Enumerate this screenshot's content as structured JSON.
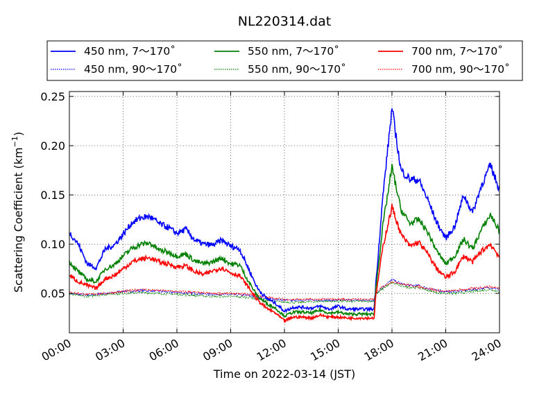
{
  "chart_data": {
    "type": "line",
    "title": "NL220314.dat",
    "xlabel": "Time on 2022-03-14 (JST)",
    "ylabel": "Scattering Coefficient (km",
    "ylabel_sup": "−1",
    "ylabel_tail": ")",
    "xlim": [
      0,
      24
    ],
    "ylim": [
      0.01,
      0.255
    ],
    "x_unit": "hours after 2022-03-14 00:00 JST",
    "x_ticks": [
      0,
      3,
      6,
      9,
      12,
      15,
      18,
      21,
      24
    ],
    "x_tick_labels": [
      "00:00",
      "03:00",
      "06:00",
      "09:00",
      "12:00",
      "15:00",
      "18:00",
      "21:00",
      "24:00"
    ],
    "y_ticks": [
      0.05,
      0.1,
      0.15,
      0.2,
      0.25
    ],
    "y_tick_labels": [
      "0.05",
      "0.10",
      "0.15",
      "0.20",
      "0.25"
    ],
    "grid": true,
    "legend_position": "top, above plot",
    "series": [
      {
        "name": "450 nm, 7～170˚",
        "color": "#0000ff",
        "style": "solid",
        "x": [
          0,
          0.5,
          1,
          1.5,
          2,
          2.5,
          3,
          3.5,
          4,
          4.5,
          5,
          5.5,
          6,
          6.5,
          7,
          7.5,
          8,
          8.5,
          9,
          9.5,
          10,
          10.5,
          11,
          11.5,
          12,
          12.5,
          13,
          13.5,
          14,
          14.5,
          15,
          15.5,
          16,
          16.5,
          17,
          17.1,
          17.5,
          18,
          18.5,
          19,
          19.5,
          20,
          20.5,
          21,
          21.5,
          22,
          22.5,
          23,
          23.5,
          24
        ],
        "y": [
          0.112,
          0.1,
          0.08,
          0.076,
          0.095,
          0.099,
          0.11,
          0.122,
          0.127,
          0.128,
          0.121,
          0.117,
          0.111,
          0.115,
          0.104,
          0.1,
          0.099,
          0.104,
          0.098,
          0.095,
          0.075,
          0.055,
          0.045,
          0.04,
          0.032,
          0.036,
          0.036,
          0.035,
          0.037,
          0.034,
          0.037,
          0.034,
          0.034,
          0.034,
          0.034,
          0.06,
          0.15,
          0.238,
          0.175,
          0.166,
          0.165,
          0.145,
          0.122,
          0.106,
          0.118,
          0.15,
          0.132,
          0.16,
          0.18,
          0.155
        ]
      },
      {
        "name": "550 nm, 7～170˚",
        "color": "#008000",
        "style": "solid",
        "x": [
          0,
          0.5,
          1,
          1.5,
          2,
          2.5,
          3,
          3.5,
          4,
          4.5,
          5,
          5.5,
          6,
          6.5,
          7,
          7.5,
          8,
          8.5,
          9,
          9.5,
          10,
          10.5,
          11,
          11.5,
          12,
          12.5,
          13,
          13.5,
          14,
          14.5,
          15,
          15.5,
          16,
          16.5,
          17,
          17.1,
          17.5,
          18,
          18.5,
          19,
          19.5,
          20,
          20.5,
          21,
          21.5,
          22,
          22.5,
          23,
          23.5,
          24
        ],
        "y": [
          0.082,
          0.072,
          0.064,
          0.062,
          0.075,
          0.079,
          0.088,
          0.096,
          0.1,
          0.101,
          0.094,
          0.092,
          0.088,
          0.09,
          0.083,
          0.08,
          0.082,
          0.086,
          0.08,
          0.079,
          0.062,
          0.047,
          0.04,
          0.035,
          0.027,
          0.031,
          0.031,
          0.03,
          0.033,
          0.03,
          0.031,
          0.029,
          0.029,
          0.029,
          0.029,
          0.055,
          0.12,
          0.178,
          0.135,
          0.121,
          0.125,
          0.112,
          0.093,
          0.08,
          0.088,
          0.105,
          0.095,
          0.115,
          0.13,
          0.113
        ]
      },
      {
        "name": "700 nm, 7～170˚",
        "color": "#ff0000",
        "style": "solid",
        "x": [
          0,
          0.5,
          1,
          1.5,
          2,
          2.5,
          3,
          3.5,
          4,
          4.5,
          5,
          5.5,
          6,
          6.5,
          7,
          7.5,
          8,
          8.5,
          9,
          9.5,
          10,
          10.5,
          11,
          11.5,
          12,
          12.5,
          13,
          13.5,
          14,
          14.5,
          15,
          15.5,
          16,
          16.5,
          17,
          17.1,
          17.5,
          18,
          18.5,
          19,
          19.5,
          20,
          20.5,
          21,
          21.5,
          22,
          22.5,
          23,
          23.5,
          24
        ],
        "y": [
          0.068,
          0.062,
          0.058,
          0.055,
          0.065,
          0.068,
          0.075,
          0.082,
          0.085,
          0.086,
          0.082,
          0.08,
          0.077,
          0.078,
          0.072,
          0.069,
          0.073,
          0.076,
          0.071,
          0.068,
          0.056,
          0.043,
          0.035,
          0.03,
          0.022,
          0.026,
          0.026,
          0.025,
          0.028,
          0.026,
          0.026,
          0.025,
          0.025,
          0.025,
          0.025,
          0.048,
          0.098,
          0.138,
          0.11,
          0.098,
          0.102,
          0.09,
          0.075,
          0.066,
          0.072,
          0.088,
          0.082,
          0.093,
          0.1,
          0.087
        ]
      },
      {
        "name": "450 nm, 90～170˚",
        "color": "#0000ff",
        "style": "dotted",
        "x": [
          0,
          1,
          2,
          3,
          4,
          5,
          6,
          7,
          8,
          9,
          10,
          11,
          12,
          13,
          14,
          15,
          16,
          17,
          17.1,
          17.5,
          18,
          18.5,
          19,
          19.5,
          20,
          20.5,
          21,
          21.5,
          22,
          22.5,
          23,
          23.5,
          24
        ],
        "y": [
          0.05,
          0.048,
          0.05,
          0.052,
          0.053,
          0.052,
          0.051,
          0.05,
          0.049,
          0.049,
          0.048,
          0.045,
          0.043,
          0.043,
          0.043,
          0.043,
          0.043,
          0.043,
          0.05,
          0.057,
          0.064,
          0.06,
          0.058,
          0.058,
          0.055,
          0.053,
          0.052,
          0.052,
          0.053,
          0.054,
          0.055,
          0.056,
          0.054
        ]
      },
      {
        "name": "550 nm, 90～170˚",
        "color": "#008000",
        "style": "dotted",
        "x": [
          0,
          1,
          2,
          3,
          4,
          5,
          6,
          7,
          8,
          9,
          10,
          11,
          12,
          13,
          14,
          15,
          16,
          17,
          17.1,
          17.5,
          18,
          18.5,
          19,
          19.5,
          20,
          20.5,
          21,
          21.5,
          22,
          22.5,
          23,
          23.5,
          24
        ],
        "y": [
          0.049,
          0.047,
          0.049,
          0.05,
          0.051,
          0.05,
          0.049,
          0.048,
          0.047,
          0.047,
          0.046,
          0.043,
          0.041,
          0.041,
          0.042,
          0.042,
          0.042,
          0.042,
          0.049,
          0.055,
          0.061,
          0.058,
          0.056,
          0.056,
          0.053,
          0.051,
          0.05,
          0.05,
          0.051,
          0.052,
          0.053,
          0.054,
          0.052
        ]
      },
      {
        "name": "700 nm, 90～170˚",
        "color": "#ff0000",
        "style": "dotted",
        "x": [
          0,
          1,
          2,
          3,
          4,
          5,
          6,
          7,
          8,
          9,
          10,
          11,
          12,
          13,
          14,
          15,
          16,
          17,
          17.1,
          17.5,
          18,
          18.5,
          19,
          19.5,
          20,
          20.5,
          21,
          21.5,
          22,
          22.5,
          23,
          23.5,
          24
        ],
        "y": [
          0.051,
          0.049,
          0.05,
          0.052,
          0.054,
          0.053,
          0.052,
          0.051,
          0.05,
          0.05,
          0.049,
          0.046,
          0.044,
          0.044,
          0.044,
          0.044,
          0.044,
          0.044,
          0.051,
          0.057,
          0.062,
          0.06,
          0.058,
          0.057,
          0.055,
          0.053,
          0.052,
          0.053,
          0.054,
          0.055,
          0.056,
          0.057,
          0.055
        ]
      }
    ]
  }
}
